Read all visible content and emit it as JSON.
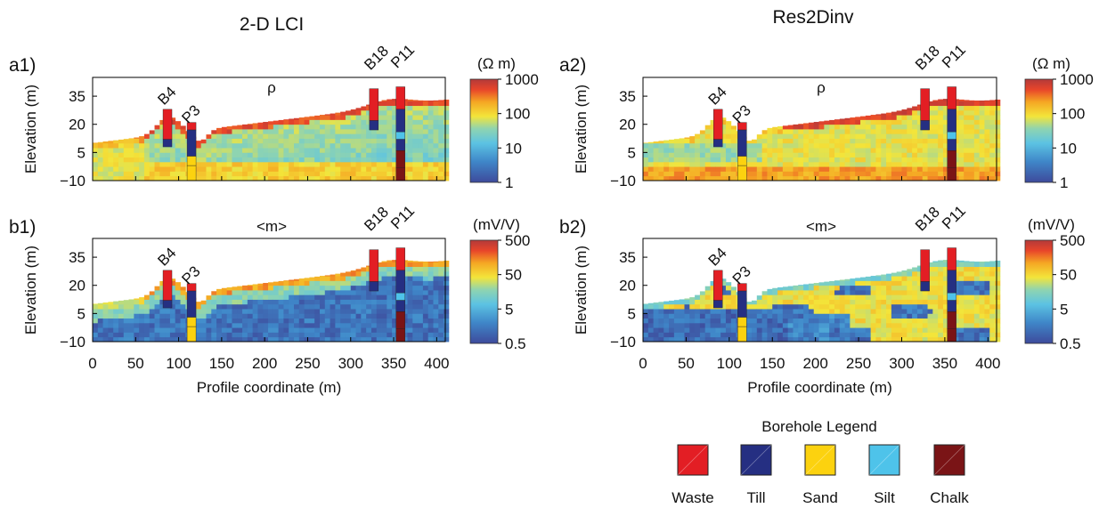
{
  "figure": {
    "column_titles": [
      "2-D LCI",
      "Res2Dinv"
    ],
    "x_label": "Profile coordinate (m)",
    "y_label": "Elevation (m)"
  },
  "chart_data": [
    {
      "id": "a1",
      "panel_label": "a1)",
      "type": "heatmap",
      "parameter_label": "ρ",
      "method": "2-D LCI",
      "xlim": [
        0,
        410
      ],
      "ylim": [
        -10,
        45
      ],
      "x_ticks": [
        0,
        50,
        100,
        150,
        200,
        250,
        300,
        350,
        400
      ],
      "y_ticks": [
        35,
        20,
        5,
        -10
      ],
      "x_ticklabels_visible": false,
      "colorbar": {
        "unit": "(Ω m)",
        "scale": "log",
        "ticks": [
          "1000",
          "100",
          "10",
          "1"
        ]
      },
      "boreholes": [
        "B4",
        "P3",
        "B18",
        "P11"
      ]
    },
    {
      "id": "a2",
      "panel_label": "a2)",
      "type": "heatmap",
      "parameter_label": "ρ",
      "method": "Res2Dinv",
      "xlim": [
        0,
        410
      ],
      "ylim": [
        -10,
        45
      ],
      "x_ticks": [
        0,
        50,
        100,
        150,
        200,
        250,
        300,
        350,
        400
      ],
      "y_ticks": [
        35,
        20,
        5,
        -10
      ],
      "x_ticklabels_visible": false,
      "colorbar": {
        "unit": "(Ω m)",
        "scale": "log",
        "ticks": [
          "1000",
          "100",
          "10",
          "1"
        ]
      },
      "boreholes": [
        "B4",
        "P3",
        "B18",
        "P11"
      ]
    },
    {
      "id": "b1",
      "panel_label": "b1)",
      "type": "heatmap",
      "parameter_label": "<m>",
      "method": "2-D LCI",
      "xlim": [
        0,
        410
      ],
      "ylim": [
        -10,
        45
      ],
      "x_ticks": [
        0,
        50,
        100,
        150,
        200,
        250,
        300,
        350,
        400
      ],
      "y_ticks": [
        35,
        20,
        5,
        -10
      ],
      "x_ticklabels_visible": true,
      "colorbar": {
        "unit": "(mV/V)",
        "scale": "log",
        "ticks": [
          "500",
          "50",
          "5",
          "0.5"
        ]
      },
      "boreholes": [
        "B4",
        "P3",
        "B18",
        "P11"
      ]
    },
    {
      "id": "b2",
      "panel_label": "b2)",
      "type": "heatmap",
      "parameter_label": "<m>",
      "method": "Res2Dinv",
      "xlim": [
        0,
        410
      ],
      "ylim": [
        -10,
        45
      ],
      "x_ticks": [
        0,
        50,
        100,
        150,
        200,
        250,
        300,
        350,
        400
      ],
      "y_ticks": [
        35,
        20,
        5,
        -10
      ],
      "x_ticklabels_visible": true,
      "colorbar": {
        "unit": "(mV/V)",
        "scale": "log",
        "ticks": [
          "500",
          "50",
          "5",
          "0.5"
        ]
      },
      "boreholes": [
        "B4",
        "P3",
        "B18",
        "P11"
      ]
    }
  ],
  "borehole_legend": {
    "title": "Borehole Legend",
    "items": [
      {
        "label": "Waste",
        "color": "#e31e24"
      },
      {
        "label": "Till",
        "color": "#252f82"
      },
      {
        "label": "Sand",
        "color": "#fcd20f"
      },
      {
        "label": "Silt",
        "color": "#4ec3ea"
      },
      {
        "label": "Chalk",
        "color": "#7a1416"
      }
    ]
  },
  "colormap": [
    "#3e4a9b",
    "#3f86c8",
    "#5cc3e3",
    "#8fd4b0",
    "#f3e53a",
    "#f5a623",
    "#e8452a",
    "#b33a3a"
  ]
}
